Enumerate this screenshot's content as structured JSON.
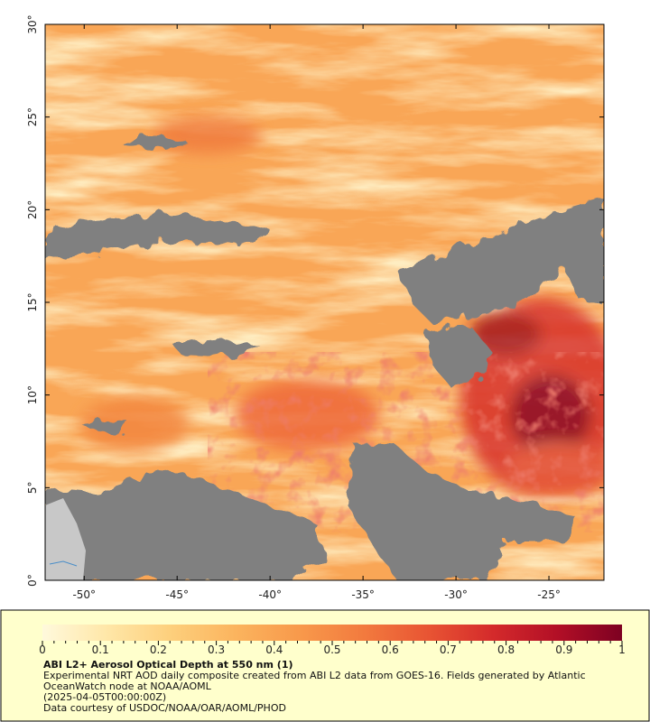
{
  "map": {
    "lat_range": [
      0,
      30
    ],
    "lon_range": [
      -52.1,
      -22.04
    ],
    "lat_ticks": [
      {
        "value": 0,
        "label": "0°"
      },
      {
        "value": 5,
        "label": "5°"
      },
      {
        "value": 10,
        "label": "10°"
      },
      {
        "value": 15,
        "label": "15°"
      },
      {
        "value": 20,
        "label": "20°"
      },
      {
        "value": 25,
        "label": "25°"
      },
      {
        "value": 30,
        "label": "30°"
      }
    ],
    "lon_ticks": [
      {
        "value": -50,
        "label": "-50°"
      },
      {
        "value": -45,
        "label": "-45°"
      },
      {
        "value": -40,
        "label": "-40°"
      },
      {
        "value": -35,
        "label": "-35°"
      },
      {
        "value": -30,
        "label": "-30°"
      },
      {
        "value": -25,
        "label": "-25°"
      }
    ]
  },
  "colorbar": {
    "range": [
      0,
      1
    ],
    "ticks": [
      0,
      0.1,
      0.2,
      0.3,
      0.4,
      0.5,
      0.6,
      0.7,
      0.8,
      0.9,
      1
    ],
    "colors": [
      "#fff9dc",
      "#ffe7a8",
      "#fdcf7c",
      "#fbb45e",
      "#f8994b",
      "#f27a3e",
      "#e85433",
      "#d42a2b",
      "#b20f26",
      "#7d0122"
    ]
  },
  "caption": {
    "title": "ABI L2+ Aerosol Optical Depth at 550 nm (1)",
    "description": "Experimental NRT AOD daily composite created from ABI L2 data from GOES-16. Fields generated by Atlantic OceanWatch node at NOAA/AOML",
    "timestamp": "(2025-04-05T00:00:00Z)",
    "credit": "Data courtesy of USDOC/NOAA/OAR/AOML/PHOD"
  }
}
